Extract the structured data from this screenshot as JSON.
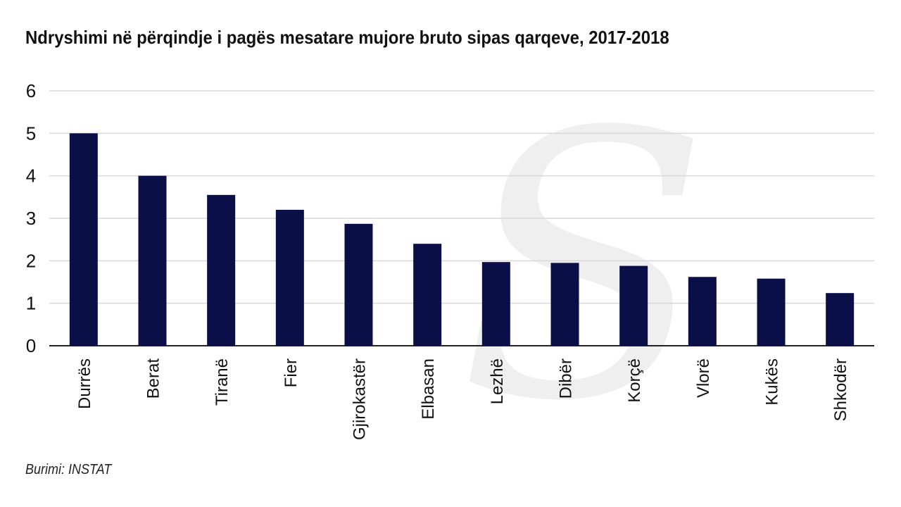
{
  "header": {
    "title": "Ndryshimi në përqindje i pagës mesatare mujore bruto sipas qarqeve, 2017-2018"
  },
  "footer": {
    "source": "Burimi: INSTAT"
  },
  "colors": {
    "bar": "#0b0f47",
    "grid": "#d9d9d9",
    "axis": "#222222",
    "text": "#111111"
  },
  "chart_data": {
    "type": "bar",
    "title": "Ndryshimi në përqindje i pagës mesatare mujore bruto sipas qarqeve, 2017-2018",
    "xlabel": "",
    "ylabel": "",
    "ylim": [
      0,
      6
    ],
    "yticks": [
      0,
      1,
      2,
      3,
      4,
      5,
      6
    ],
    "grid": true,
    "legend": "none",
    "categories": [
      "Durrës",
      "Berat",
      "Tiranë",
      "Fier",
      "Gjirokastër",
      "Elbasan",
      "Lezhë",
      "Dibër",
      "Korçë",
      "Vlorë",
      "Kukës",
      "Shkodër"
    ],
    "values": [
      5.0,
      4.0,
      3.55,
      3.2,
      2.87,
      2.4,
      1.97,
      1.95,
      1.88,
      1.62,
      1.58,
      1.24
    ]
  }
}
